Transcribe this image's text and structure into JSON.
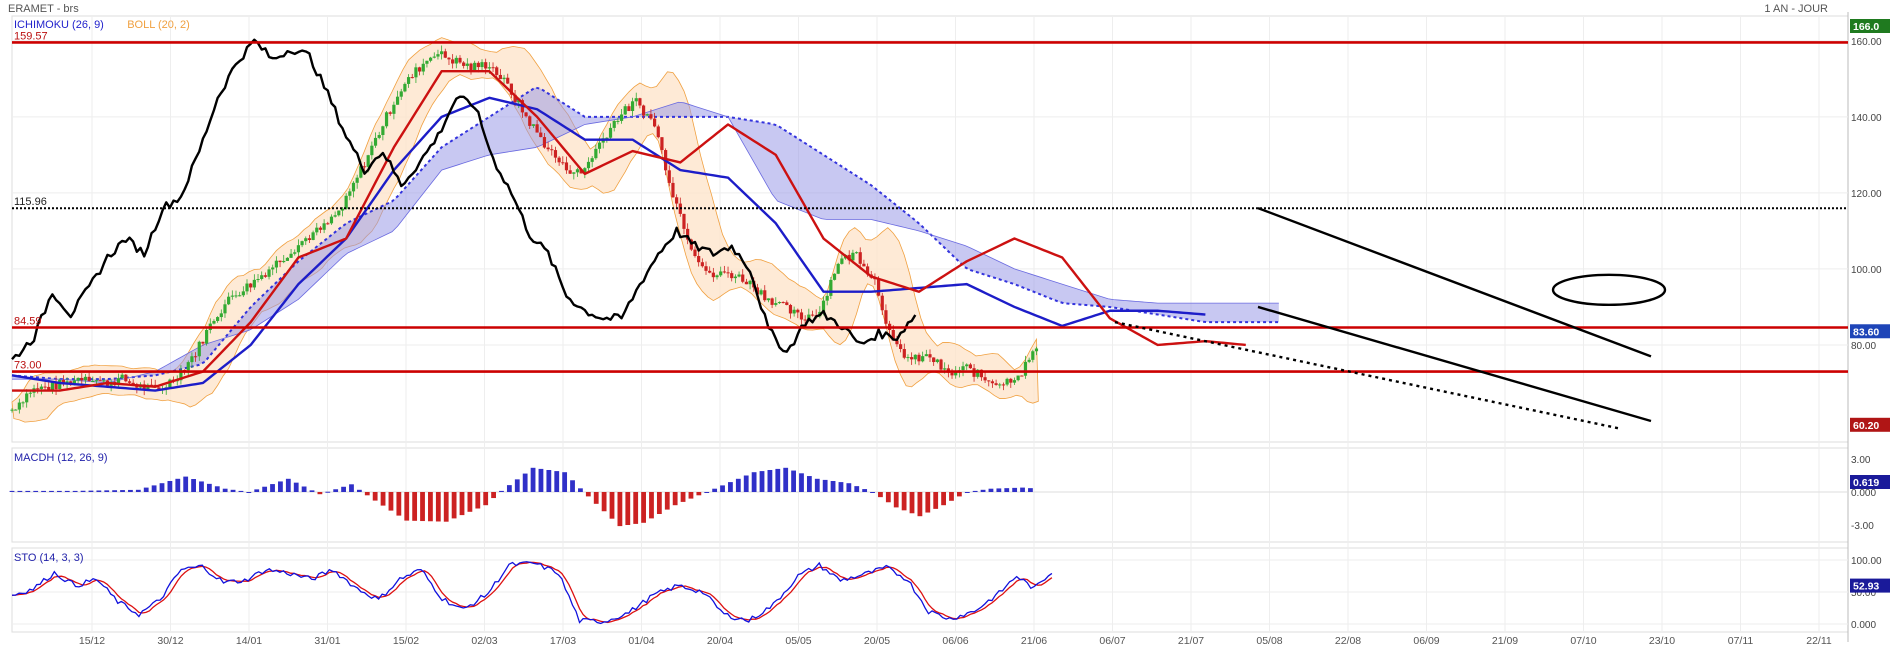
{
  "header": {
    "title": "ERAMET - brs",
    "period": "1 AN - JOUR"
  },
  "chart_data": {
    "type": "candlestick",
    "x_ticks": [
      "15/12",
      "30/12",
      "14/01",
      "31/01",
      "15/02",
      "02/03",
      "17/03",
      "01/04",
      "20/04",
      "05/05",
      "20/05",
      "06/06",
      "21/06",
      "06/07",
      "21/07",
      "05/08",
      "22/08",
      "06/09",
      "21/09",
      "07/10",
      "23/10",
      "07/11",
      "22/11"
    ],
    "price_panel": {
      "indicators": [
        {
          "name": "ICHIMOKU (26, 9)",
          "color": "#2222cc"
        },
        {
          "name": "BOLL (20, 2)",
          "color": "#f0a040"
        }
      ],
      "ylim": [
        55,
        166
      ],
      "y_ticks": [
        80,
        100,
        120,
        140,
        160
      ],
      "last_price": "83.60",
      "top_badge": "166.0",
      "bottom_badge": "60.20",
      "levels": [
        {
          "label": "159.57",
          "value": 159.57,
          "color": "#cc0000",
          "style": "solid"
        },
        {
          "label": "115.96",
          "value": 115.96,
          "color": "#000000",
          "style": "dotted"
        },
        {
          "label": "84.59",
          "value": 84.59,
          "color": "#cc0000",
          "style": "solid"
        },
        {
          "label": "73.00",
          "value": 73.0,
          "color": "#cc0000",
          "style": "solid"
        }
      ],
      "close_anchors": [
        [
          0,
          63
        ],
        [
          10,
          68
        ],
        [
          20,
          69
        ],
        [
          30,
          70
        ],
        [
          40,
          72
        ],
        [
          50,
          70
        ],
        [
          60,
          71
        ],
        [
          70,
          69
        ],
        [
          80,
          68
        ],
        [
          90,
          72
        ],
        [
          100,
          78
        ],
        [
          110,
          87
        ],
        [
          120,
          93
        ],
        [
          130,
          96
        ],
        [
          140,
          100
        ],
        [
          150,
          104
        ],
        [
          160,
          108
        ],
        [
          170,
          111
        ],
        [
          180,
          116
        ],
        [
          190,
          126
        ],
        [
          200,
          136
        ],
        [
          210,
          146
        ],
        [
          220,
          152
        ],
        [
          230,
          157
        ],
        [
          240,
          155
        ],
        [
          250,
          153
        ],
        [
          260,
          154
        ],
        [
          270,
          148
        ],
        [
          280,
          140
        ],
        [
          290,
          133
        ],
        [
          300,
          127
        ],
        [
          310,
          125
        ],
        [
          320,
          133
        ],
        [
          330,
          140
        ],
        [
          340,
          144
        ],
        [
          350,
          138
        ],
        [
          360,
          120
        ],
        [
          370,
          106
        ],
        [
          380,
          98
        ],
        [
          390,
          99
        ],
        [
          400,
          97
        ],
        [
          410,
          93
        ],
        [
          420,
          90
        ],
        [
          430,
          87
        ],
        [
          440,
          89
        ],
        [
          450,
          102
        ],
        [
          460,
          104
        ],
        [
          470,
          97
        ],
        [
          480,
          80
        ],
        [
          490,
          76
        ],
        [
          500,
          77
        ],
        [
          510,
          72
        ],
        [
          520,
          74
        ],
        [
          530,
          71
        ],
        [
          540,
          70
        ],
        [
          550,
          73
        ],
        [
          556,
          78
        ]
      ],
      "chikou_anchors": [
        [
          0,
          76
        ],
        [
          12,
          82
        ],
        [
          22,
          94
        ],
        [
          32,
          88
        ],
        [
          42,
          95
        ],
        [
          52,
          103
        ],
        [
          62,
          108
        ],
        [
          72,
          104
        ],
        [
          82,
          116
        ],
        [
          92,
          119
        ],
        [
          102,
          131
        ],
        [
          112,
          145
        ],
        [
          122,
          154
        ],
        [
          132,
          160
        ],
        [
          142,
          155
        ],
        [
          152,
          158
        ],
        [
          162,
          156
        ],
        [
          172,
          146
        ],
        [
          182,
          135
        ],
        [
          192,
          126
        ],
        [
          202,
          131
        ],
        [
          212,
          122
        ],
        [
          222,
          128
        ],
        [
          232,
          135
        ],
        [
          242,
          145
        ],
        [
          252,
          143
        ],
        [
          262,
          129
        ],
        [
          272,
          120
        ],
        [
          282,
          109
        ],
        [
          292,
          104
        ],
        [
          302,
          93
        ],
        [
          312,
          89
        ],
        [
          322,
          87
        ],
        [
          332,
          87
        ],
        [
          342,
          96
        ],
        [
          352,
          104
        ],
        [
          362,
          110
        ],
        [
          372,
          106
        ],
        [
          382,
          104
        ],
        [
          392,
          106
        ],
        [
          402,
          100
        ],
        [
          412,
          84
        ],
        [
          422,
          78
        ],
        [
          432,
          86
        ],
        [
          442,
          88
        ],
        [
          452,
          85
        ],
        [
          462,
          80
        ],
        [
          472,
          83
        ],
        [
          482,
          82
        ],
        [
          492,
          88
        ]
      ],
      "tenkan_anchors": [
        [
          0,
          68
        ],
        [
          26,
          68
        ],
        [
          52,
          70
        ],
        [
          78,
          69
        ],
        [
          104,
          73
        ],
        [
          130,
          86
        ],
        [
          156,
          103
        ],
        [
          182,
          108
        ],
        [
          208,
          132
        ],
        [
          234,
          152
        ],
        [
          260,
          152
        ],
        [
          286,
          140
        ],
        [
          312,
          125
        ],
        [
          338,
          131
        ],
        [
          364,
          128
        ],
        [
          390,
          138
        ],
        [
          416,
          130
        ],
        [
          442,
          108
        ],
        [
          468,
          98
        ],
        [
          494,
          94
        ],
        [
          520,
          102
        ],
        [
          546,
          108
        ],
        [
          572,
          103
        ],
        [
          598,
          87
        ],
        [
          624,
          80
        ],
        [
          650,
          81
        ],
        [
          672,
          80
        ]
      ],
      "kijun_anchors": [
        [
          0,
          72
        ],
        [
          26,
          70
        ],
        [
          52,
          69
        ],
        [
          78,
          68
        ],
        [
          104,
          70
        ],
        [
          130,
          80
        ],
        [
          156,
          96
        ],
        [
          182,
          108
        ],
        [
          208,
          126
        ],
        [
          234,
          140
        ],
        [
          260,
          145
        ],
        [
          286,
          142
        ],
        [
          312,
          134
        ],
        [
          338,
          134
        ],
        [
          364,
          126
        ],
        [
          390,
          124
        ],
        [
          416,
          112
        ],
        [
          442,
          94
        ],
        [
          468,
          94
        ],
        [
          494,
          95
        ],
        [
          520,
          96
        ],
        [
          546,
          90
        ],
        [
          572,
          85
        ],
        [
          598,
          89
        ],
        [
          624,
          89
        ],
        [
          650,
          88
        ]
      ],
      "cloud_a_anchors": [
        [
          0,
          72
        ],
        [
          26,
          71
        ],
        [
          52,
          71
        ],
        [
          78,
          72
        ],
        [
          104,
          75
        ],
        [
          130,
          90
        ],
        [
          156,
          102
        ],
        [
          182,
          112
        ],
        [
          208,
          118
        ],
        [
          234,
          132
        ],
        [
          260,
          140
        ],
        [
          286,
          148
        ],
        [
          312,
          140
        ],
        [
          338,
          140
        ],
        [
          364,
          140
        ],
        [
          390,
          140
        ],
        [
          416,
          138
        ],
        [
          442,
          130
        ],
        [
          468,
          122
        ],
        [
          494,
          112
        ],
        [
          520,
          100
        ],
        [
          546,
          96
        ],
        [
          572,
          91
        ],
        [
          598,
          90
        ],
        [
          624,
          88
        ],
        [
          650,
          86
        ]
      ],
      "cloud_b_anchors": [
        [
          0,
          71
        ],
        [
          26,
          71
        ],
        [
          52,
          70
        ],
        [
          78,
          73
        ],
        [
          104,
          80
        ],
        [
          130,
          84
        ],
        [
          156,
          92
        ],
        [
          182,
          104
        ],
        [
          208,
          110
        ],
        [
          234,
          126
        ],
        [
          260,
          130
        ],
        [
          286,
          132
        ],
        [
          312,
          138
        ],
        [
          338,
          140
        ],
        [
          364,
          144
        ],
        [
          390,
          140
        ],
        [
          416,
          118
        ],
        [
          442,
          113
        ],
        [
          468,
          113
        ],
        [
          494,
          110
        ],
        [
          520,
          106
        ],
        [
          546,
          100
        ],
        [
          572,
          96
        ],
        [
          598,
          92
        ],
        [
          624,
          91
        ],
        [
          650,
          91
        ]
      ],
      "trendlines": [
        {
          "from": [
            0,
            116
          ],
          "to": [
            1,
            77
          ],
          "style": "solid"
        },
        {
          "from": [
            0,
            90
          ],
          "to": [
            1,
            60
          ],
          "style": "solid"
        },
        {
          "from": [
            0,
            86
          ],
          "to": [
            1,
            58
          ],
          "style": "dotted"
        }
      ]
    },
    "macd_panel": {
      "label": "MACDH (12, 26, 9)",
      "y_ticks": [
        "3.00",
        "0.000",
        "-3.00"
      ],
      "last_value": "0.619"
    },
    "sto_panel": {
      "label": "STO (14, 3, 3)",
      "y_ticks": [
        "100.00",
        "50.00",
        "0.000"
      ],
      "last_value": "52.93"
    }
  }
}
